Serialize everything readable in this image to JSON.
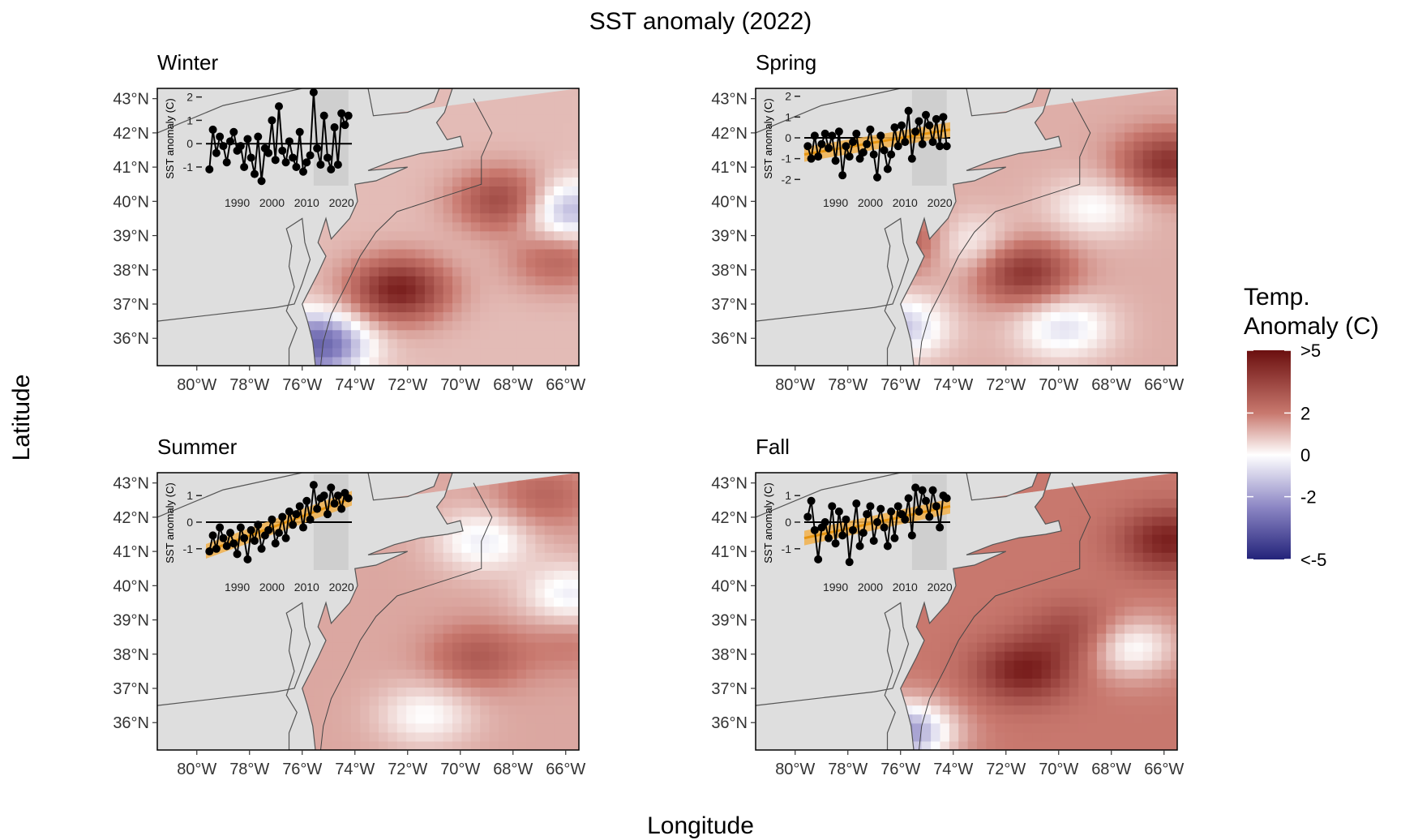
{
  "title": "SST anomaly (2022)",
  "x_axis_label": "Longitude",
  "y_axis_label": "Latitude",
  "legend": {
    "title_line1": "Temp.",
    "title_line2": "Anomaly (C)",
    "labels": [
      ">5",
      "2",
      "0",
      "-2",
      "<-5"
    ],
    "values": [
      5,
      2,
      0,
      -2,
      -5
    ],
    "colors": {
      "high": "#6b0f0f",
      "mid_high": "#c8786e",
      "zero": "#ffffff",
      "mid_low": "#8c86c4",
      "low": "#23237a"
    }
  },
  "colors": {
    "land": "#dedede",
    "coast": "#555555",
    "trend_line": "#e69512",
    "trend_band": "#f2b24c",
    "inset_shade": "#cfcfcf"
  },
  "chart_data": [
    {
      "type": "heatmap",
      "panel": "Winter",
      "x_label": "Longitude",
      "y_label": "Latitude",
      "x_ticks": [
        "80°W",
        "78°W",
        "76°W",
        "74°W",
        "72°W",
        "70°W",
        "68°W",
        "66°W"
      ],
      "x_tick_values": [
        -80,
        -78,
        -76,
        -74,
        -72,
        -70,
        -68,
        -66
      ],
      "y_ticks": [
        "43°N",
        "42°N",
        "41°N",
        "40°N",
        "39°N",
        "38°N",
        "37°N",
        "36°N"
      ],
      "y_tick_values": [
        43,
        42,
        41,
        40,
        39,
        38,
        37,
        36
      ],
      "xlim": [
        -81.5,
        -65.5
      ],
      "ylim": [
        35.2,
        43.3
      ],
      "anomaly_features": [
        {
          "lon": -72.5,
          "lat": 37.3,
          "value": 4.5
        },
        {
          "lon": -68.5,
          "lat": 39.9,
          "value": 3.5
        },
        {
          "lon": -66.5,
          "lat": 38.2,
          "value": 2.5
        },
        {
          "lon": -66.2,
          "lat": 39.6,
          "value": -1.5
        },
        {
          "lon": -75.6,
          "lat": 35.7,
          "value": -3.0
        }
      ],
      "background_anomaly": 1.0,
      "inset": {
        "type": "line",
        "y_label": "SST anomaly (C)",
        "x_ticks": [
          "1990",
          "2000",
          "2010",
          "2020"
        ],
        "y_ticks": [
          "2",
          "1",
          "0",
          "-1"
        ],
        "y_tick_values": [
          2,
          1,
          0,
          -1
        ],
        "xlim": [
          1981,
          2023
        ],
        "ylim": [
          -1.8,
          2.3
        ],
        "x": [
          1982,
          1983,
          1984,
          1985,
          1986,
          1987,
          1988,
          1989,
          1990,
          1991,
          1992,
          1993,
          1994,
          1995,
          1996,
          1997,
          1998,
          1999,
          2000,
          2001,
          2002,
          2003,
          2004,
          2005,
          2006,
          2007,
          2008,
          2009,
          2010,
          2011,
          2012,
          2013,
          2014,
          2015,
          2016,
          2017,
          2018,
          2019,
          2020,
          2021,
          2022
        ],
        "y": [
          -1.1,
          0.6,
          -0.4,
          0.3,
          -0.1,
          -0.8,
          0.1,
          0.5,
          -0.3,
          -0.1,
          -1.0,
          0.2,
          -0.6,
          -1.3,
          0.3,
          -1.6,
          -0.2,
          -0.4,
          1.0,
          -0.7,
          1.6,
          -0.3,
          -0.8,
          0.1,
          -0.6,
          -1.0,
          0.5,
          -1.2,
          -0.8,
          -0.5,
          2.2,
          -0.2,
          -0.9,
          1.2,
          -0.6,
          -1.1,
          0.7,
          -0.9,
          1.3,
          0.8,
          1.2
        ],
        "show_trend": false,
        "shaded_xrange": [
          2012,
          2022
        ]
      }
    },
    {
      "type": "heatmap",
      "panel": "Spring",
      "x_label": "Longitude",
      "y_label": "Latitude",
      "x_ticks": [
        "80°W",
        "78°W",
        "76°W",
        "74°W",
        "72°W",
        "70°W",
        "68°W",
        "66°W"
      ],
      "x_tick_values": [
        -80,
        -78,
        -76,
        -74,
        -72,
        -70,
        -68,
        -66
      ],
      "y_ticks": [
        "43°N",
        "42°N",
        "41°N",
        "40°N",
        "39°N",
        "38°N",
        "37°N",
        "36°N"
      ],
      "y_tick_values": [
        43,
        42,
        41,
        40,
        39,
        38,
        37,
        36
      ],
      "xlim": [
        -81.5,
        -65.5
      ],
      "ylim": [
        35.2,
        43.3
      ],
      "anomaly_features": [
        {
          "lon": -71.5,
          "lat": 37.8,
          "value": 4.0
        },
        {
          "lon": -66.0,
          "lat": 41.0,
          "value": 4.0
        },
        {
          "lon": -73.8,
          "lat": 38.6,
          "value": -0.3
        },
        {
          "lon": -70.0,
          "lat": 36.2,
          "value": -0.5
        },
        {
          "lon": -68.8,
          "lat": 39.7,
          "value": 0.0
        },
        {
          "lon": -76.3,
          "lat": 36.2,
          "value": -1.0
        },
        {
          "lon": -75.8,
          "lat": 38.7,
          "value": 3.0
        }
      ],
      "background_anomaly": 1.2,
      "inset": {
        "type": "line",
        "y_label": "SST anomaly (C)",
        "x_ticks": [
          "1990",
          "2000",
          "2010",
          "2020"
        ],
        "y_ticks": [
          "2",
          "1",
          "0",
          "-1",
          "-2"
        ],
        "y_tick_values": [
          2,
          1,
          0,
          -1,
          -2
        ],
        "xlim": [
          1981,
          2023
        ],
        "ylim": [
          -2.3,
          2.3
        ],
        "x": [
          1982,
          1983,
          1984,
          1985,
          1986,
          1987,
          1988,
          1989,
          1990,
          1991,
          1992,
          1993,
          1994,
          1995,
          1996,
          1997,
          1998,
          1999,
          2000,
          2001,
          2002,
          2003,
          2004,
          2005,
          2006,
          2007,
          2008,
          2009,
          2010,
          2011,
          2012,
          2013,
          2014,
          2015,
          2016,
          2017,
          2018,
          2019,
          2020,
          2021,
          2022
        ],
        "y": [
          -0.4,
          -1.0,
          0.1,
          -0.9,
          -0.3,
          0.2,
          -0.5,
          0.1,
          -1.1,
          0.3,
          -1.8,
          -0.4,
          -0.9,
          -0.2,
          0.2,
          -1.0,
          -0.7,
          -0.3,
          0.4,
          -0.8,
          -1.9,
          0.1,
          -0.6,
          -1.5,
          -0.8,
          0.5,
          -0.4,
          0.6,
          -0.2,
          1.3,
          -1.0,
          0.3,
          0.8,
          -0.3,
          1.1,
          0.6,
          -0.2,
          0.9,
          -0.4,
          1.0,
          -0.4
        ],
        "show_trend": true,
        "trend": {
          "start": -0.8,
          "end": 0.4
        },
        "shaded_xrange": [
          2012,
          2022
        ]
      }
    },
    {
      "type": "heatmap",
      "panel": "Summer",
      "x_label": "Longitude",
      "y_label": "Latitude",
      "x_ticks": [
        "80°W",
        "78°W",
        "76°W",
        "74°W",
        "72°W",
        "70°W",
        "68°W",
        "66°W"
      ],
      "x_tick_values": [
        -80,
        -78,
        -76,
        -74,
        -72,
        -70,
        -68,
        -66
      ],
      "y_ticks": [
        "43°N",
        "42°N",
        "41°N",
        "40°N",
        "39°N",
        "38°N",
        "37°N",
        "36°N"
      ],
      "y_tick_values": [
        43,
        42,
        41,
        40,
        39,
        38,
        37,
        36
      ],
      "xlim": [
        -81.5,
        -65.5
      ],
      "ylim": [
        35.2,
        43.3
      ],
      "anomaly_features": [
        {
          "lon": -69.5,
          "lat": 37.8,
          "value": 2.8
        },
        {
          "lon": -66.0,
          "lat": 38.2,
          "value": 2.0
        },
        {
          "lon": -67.0,
          "lat": 42.5,
          "value": 2.5
        },
        {
          "lon": -66.0,
          "lat": 39.6,
          "value": -0.3
        },
        {
          "lon": -69.3,
          "lat": 41.2,
          "value": -0.3
        },
        {
          "lon": -71.5,
          "lat": 36.1,
          "value": 0.0
        }
      ],
      "background_anomaly": 1.3,
      "inset": {
        "type": "line",
        "y_label": "SST anomaly (C)",
        "x_ticks": [
          "1990",
          "2000",
          "2010",
          "2020"
        ],
        "y_ticks": [
          "1",
          "0",
          "-1"
        ],
        "y_tick_values": [
          1,
          0,
          -1
        ],
        "xlim": [
          1981,
          2023
        ],
        "ylim": [
          -1.8,
          1.8
        ],
        "x": [
          1982,
          1983,
          1984,
          1985,
          1986,
          1987,
          1988,
          1989,
          1990,
          1991,
          1992,
          1993,
          1994,
          1995,
          1996,
          1997,
          1998,
          1999,
          2000,
          2001,
          2002,
          2003,
          2004,
          2005,
          2006,
          2007,
          2008,
          2009,
          2010,
          2011,
          2012,
          2013,
          2014,
          2015,
          2016,
          2017,
          2018,
          2019,
          2020,
          2021,
          2022
        ],
        "y": [
          -1.1,
          -0.5,
          -1.0,
          -0.2,
          -0.6,
          -0.9,
          -0.4,
          -0.8,
          -1.2,
          -0.2,
          -0.6,
          -1.4,
          -0.3,
          -0.7,
          -0.1,
          -1.0,
          -0.5,
          -0.3,
          0.1,
          -0.8,
          -0.4,
          0.2,
          -0.6,
          0.4,
          -0.1,
          0.3,
          0.6,
          -0.2,
          0.8,
          0.1,
          1.4,
          0.5,
          0.9,
          1.0,
          0.3,
          1.3,
          0.7,
          1.0,
          0.5,
          1.1,
          0.9
        ],
        "show_trend": true,
        "trend": {
          "start": -1.1,
          "end": 0.9
        },
        "shaded_xrange": [
          2012,
          2022
        ]
      }
    },
    {
      "type": "heatmap",
      "panel": "Fall",
      "x_label": "Longitude",
      "y_label": "Latitude",
      "x_ticks": [
        "80°W",
        "78°W",
        "76°W",
        "74°W",
        "72°W",
        "70°W",
        "68°W",
        "66°W"
      ],
      "x_tick_values": [
        -80,
        -78,
        -76,
        -74,
        -72,
        -70,
        -68,
        -66
      ],
      "y_ticks": [
        "43°N",
        "42°N",
        "41°N",
        "40°N",
        "39°N",
        "38°N",
        "37°N",
        "36°N"
      ],
      "y_tick_values": [
        43,
        42,
        41,
        40,
        39,
        38,
        37,
        36
      ],
      "xlim": [
        -81.5,
        -65.5
      ],
      "ylim": [
        35.2,
        43.3
      ],
      "anomaly_features": [
        {
          "lon": -71.5,
          "lat": 37.4,
          "value": 4.5
        },
        {
          "lon": -66.0,
          "lat": 41.2,
          "value": 4.5
        },
        {
          "lon": -69.5,
          "lat": 38.5,
          "value": 3.5
        },
        {
          "lon": -67.5,
          "lat": 38.1,
          "value": -0.2
        },
        {
          "lon": -76.0,
          "lat": 35.6,
          "value": -1.8
        }
      ],
      "background_anomaly": 2.0,
      "inset": {
        "type": "line",
        "y_label": "SST anomaly (C)",
        "x_ticks": [
          "1990",
          "2000",
          "2010",
          "2020"
        ],
        "y_ticks": [
          "1",
          "0",
          "-1"
        ],
        "y_tick_values": [
          1,
          0,
          -1
        ],
        "xlim": [
          1981,
          2023
        ],
        "ylim": [
          -1.8,
          1.8
        ],
        "x": [
          1982,
          1983,
          1984,
          1985,
          1986,
          1987,
          1988,
          1989,
          1990,
          1991,
          1992,
          1993,
          1994,
          1995,
          1996,
          1997,
          1998,
          1999,
          2000,
          2001,
          2002,
          2003,
          2004,
          2005,
          2006,
          2007,
          2008,
          2009,
          2010,
          2011,
          2012,
          2013,
          2014,
          2015,
          2016,
          2017,
          2018,
          2019,
          2020,
          2021,
          2022
        ],
        "y": [
          0.2,
          0.8,
          -0.3,
          -1.4,
          -0.2,
          0.0,
          -0.6,
          0.6,
          -0.8,
          0.4,
          -0.5,
          0.1,
          -1.5,
          -0.3,
          0.7,
          -0.9,
          -0.4,
          0.3,
          0.6,
          -0.7,
          0.0,
          0.5,
          -0.2,
          -0.9,
          0.4,
          -0.6,
          0.6,
          0.3,
          0.1,
          0.9,
          -0.5,
          1.3,
          0.4,
          1.2,
          0.8,
          0.2,
          1.2,
          0.6,
          -0.2,
          1.0,
          0.9
        ],
        "show_trend": true,
        "trend": {
          "start": -0.6,
          "end": 0.6
        },
        "shaded_xrange": [
          2012,
          2022
        ]
      }
    }
  ]
}
